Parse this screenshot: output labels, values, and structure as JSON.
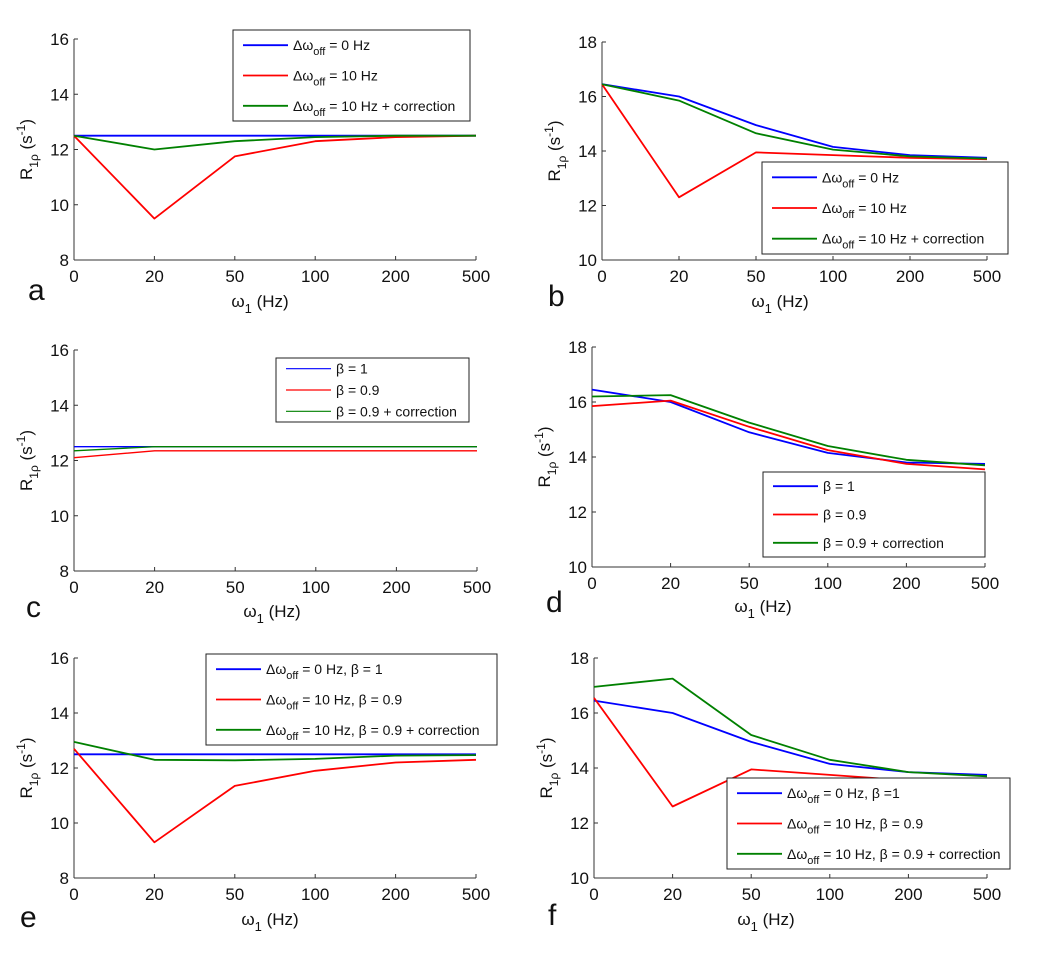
{
  "chart_data": [
    {
      "type": "line",
      "panel_label": "a",
      "x": [
        "0",
        "20",
        "50",
        "100",
        "200",
        "500"
      ],
      "xlabel": "ω1 (Hz)",
      "ylabel": "R1ρ (s-1)",
      "ylim": [
        8,
        16
      ],
      "yticks": [
        8,
        10,
        12,
        14,
        16
      ],
      "legend_position": "top-right",
      "series": [
        {
          "name": "Δω_off = 0 Hz",
          "color": "#0000ff",
          "values": [
            12.5,
            12.5,
            12.5,
            12.5,
            12.5,
            12.5
          ]
        },
        {
          "name": "Δω_off = 10 Hz",
          "color": "#ff0000",
          "values": [
            12.5,
            9.5,
            11.75,
            12.3,
            12.45,
            12.5
          ]
        },
        {
          "name": "Δω_off = 10 Hz + correction",
          "color": "#008000",
          "values": [
            12.5,
            12.0,
            12.3,
            12.45,
            12.5,
            12.5
          ]
        }
      ]
    },
    {
      "type": "line",
      "panel_label": "b",
      "x": [
        "0",
        "20",
        "50",
        "100",
        "200",
        "500"
      ],
      "xlabel": "ω1 (Hz)",
      "ylabel": "R1ρ (s-1)",
      "ylim": [
        10,
        18
      ],
      "yticks": [
        10,
        12,
        14,
        16,
        18
      ],
      "legend_position": "bottom-right",
      "series": [
        {
          "name": "Δω_off = 0 Hz",
          "color": "#0000ff",
          "values": [
            16.45,
            16.0,
            14.95,
            14.15,
            13.85,
            13.75
          ]
        },
        {
          "name": "Δω_off = 10 Hz",
          "color": "#ff0000",
          "values": [
            16.45,
            12.3,
            13.95,
            13.85,
            13.75,
            13.7
          ]
        },
        {
          "name": "Δω_off = 10 Hz + correction",
          "color": "#008000",
          "values": [
            16.45,
            15.85,
            14.65,
            14.05,
            13.8,
            13.72
          ]
        }
      ]
    },
    {
      "type": "line",
      "panel_label": "c",
      "x": [
        "0",
        "20",
        "50",
        "100",
        "200",
        "500"
      ],
      "xlabel": "ω1 (Hz)",
      "ylabel": "R1ρ (s-1)",
      "ylim": [
        8,
        16
      ],
      "yticks": [
        8,
        10,
        12,
        14,
        16
      ],
      "legend_position": "top-right",
      "series": [
        {
          "name": "β = 1",
          "color": "#0000ff",
          "values": [
            12.5,
            12.5,
            12.5,
            12.5,
            12.5,
            12.5
          ]
        },
        {
          "name": "β = 0.9",
          "color": "#ff0000",
          "values": [
            12.1,
            12.35,
            12.35,
            12.35,
            12.35,
            12.35
          ]
        },
        {
          "name": "β = 0.9 + correction",
          "color": "#008000",
          "values": [
            12.35,
            12.5,
            12.5,
            12.5,
            12.5,
            12.5
          ]
        }
      ]
    },
    {
      "type": "line",
      "panel_label": "d",
      "x": [
        "0",
        "20",
        "50",
        "100",
        "200",
        "500"
      ],
      "xlabel": "ω1 (Hz)",
      "ylabel": "R1ρ (s-1)",
      "ylim": [
        10,
        18
      ],
      "yticks": [
        10,
        12,
        14,
        16,
        18
      ],
      "legend_position": "bottom-right",
      "series": [
        {
          "name": "β = 1",
          "color": "#0000ff",
          "values": [
            16.45,
            16.0,
            14.9,
            14.15,
            13.8,
            13.75
          ]
        },
        {
          "name": "β = 0.9",
          "color": "#ff0000",
          "values": [
            15.85,
            16.05,
            15.1,
            14.25,
            13.75,
            13.55
          ]
        },
        {
          "name": "β = 0.9 + correction",
          "color": "#008000",
          "values": [
            16.2,
            16.25,
            15.25,
            14.4,
            13.9,
            13.7
          ]
        }
      ]
    },
    {
      "type": "line",
      "panel_label": "e",
      "x": [
        "0",
        "20",
        "50",
        "100",
        "200",
        "500"
      ],
      "xlabel": "ω1 (Hz)",
      "ylabel": "R1ρ (s-1)",
      "ylim": [
        8,
        16
      ],
      "yticks": [
        8,
        10,
        12,
        14,
        16
      ],
      "legend_position": "top-right",
      "series": [
        {
          "name": "Δω_off = 0 Hz, β = 1",
          "color": "#0000ff",
          "values": [
            12.5,
            12.5,
            12.5,
            12.5,
            12.5,
            12.5
          ]
        },
        {
          "name": "Δω_off = 10 Hz, β = 0.9",
          "color": "#ff0000",
          "values": [
            12.7,
            9.3,
            11.35,
            11.9,
            12.2,
            12.3
          ]
        },
        {
          "name": "Δω_off = 10 Hz, β = 0.9 + correction",
          "color": "#008000",
          "values": [
            12.95,
            12.3,
            12.28,
            12.33,
            12.45,
            12.47
          ]
        }
      ]
    },
    {
      "type": "line",
      "panel_label": "f",
      "x": [
        "0",
        "20",
        "50",
        "100",
        "200",
        "500"
      ],
      "xlabel": "ω1 (Hz)",
      "ylabel": "R1ρ (s-1)",
      "ylim": [
        10,
        18
      ],
      "yticks": [
        10,
        12,
        14,
        16,
        18
      ],
      "legend_position": "bottom-right",
      "series": [
        {
          "name": "Δω_off = 0 Hz, β =1",
          "color": "#0000ff",
          "values": [
            16.45,
            16.0,
            14.95,
            14.15,
            13.85,
            13.75
          ]
        },
        {
          "name": "Δω_off = 10 Hz, β = 0.9",
          "color": "#ff0000",
          "values": [
            16.55,
            12.6,
            13.95,
            13.75,
            13.55,
            13.5
          ]
        },
        {
          "name": "Δω_off = 10 Hz, β = 0.9 + correction",
          "color": "#008000",
          "values": [
            16.95,
            17.25,
            15.2,
            14.3,
            13.85,
            13.7
          ]
        }
      ]
    }
  ]
}
